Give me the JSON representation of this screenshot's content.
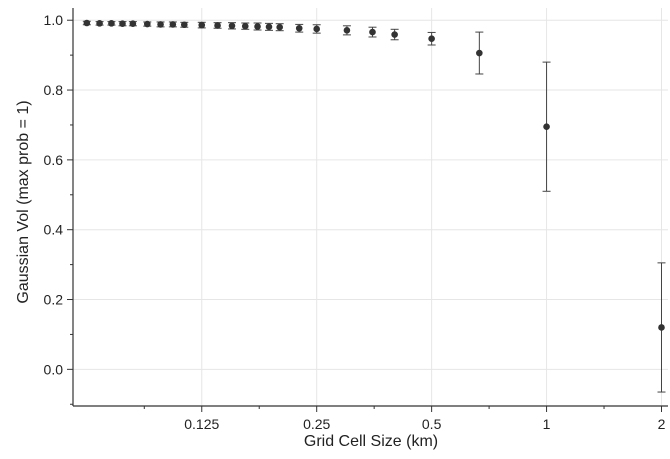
{
  "chart_data": {
    "type": "scatter",
    "xlabel": "Grid Cell Size (km)",
    "ylabel": "Gaussian Vol (max prob = 1)",
    "x_scale": "log2",
    "xlim": [
      0.0575,
      2.08
    ],
    "ylim": [
      -0.105,
      1.035
    ],
    "x_ticks": [
      {
        "value": 0.125,
        "label": "0.125"
      },
      {
        "value": 0.25,
        "label": "0.25"
      },
      {
        "value": 0.5,
        "label": "0.5"
      },
      {
        "value": 1,
        "label": "1"
      },
      {
        "value": 2,
        "label": "2"
      }
    ],
    "y_ticks": [
      {
        "value": 0.0,
        "label": "0.0"
      },
      {
        "value": 0.2,
        "label": "0.2"
      },
      {
        "value": 0.4,
        "label": "0.4"
      },
      {
        "value": 0.6,
        "label": "0.6"
      },
      {
        "value": 0.8,
        "label": "0.8"
      },
      {
        "value": 1.0,
        "label": "1.0"
      }
    ],
    "grid": true,
    "legend": "none",
    "marker_color": "#333333",
    "series": [
      {
        "points": [
          {
            "x": 0.0625,
            "y": 0.992,
            "err": 0.005
          },
          {
            "x": 0.0675,
            "y": 0.991,
            "err": 0.005
          },
          {
            "x": 0.0725,
            "y": 0.991,
            "err": 0.005
          },
          {
            "x": 0.0775,
            "y": 0.99,
            "err": 0.006
          },
          {
            "x": 0.0825,
            "y": 0.99,
            "err": 0.006
          },
          {
            "x": 0.09,
            "y": 0.989,
            "err": 0.006
          },
          {
            "x": 0.0975,
            "y": 0.988,
            "err": 0.007
          },
          {
            "x": 0.105,
            "y": 0.988,
            "err": 0.007
          },
          {
            "x": 0.1125,
            "y": 0.987,
            "err": 0.007
          },
          {
            "x": 0.125,
            "y": 0.986,
            "err": 0.008
          },
          {
            "x": 0.1375,
            "y": 0.985,
            "err": 0.008
          },
          {
            "x": 0.15,
            "y": 0.984,
            "err": 0.009
          },
          {
            "x": 0.1625,
            "y": 0.983,
            "err": 0.009
          },
          {
            "x": 0.175,
            "y": 0.982,
            "err": 0.01
          },
          {
            "x": 0.1875,
            "y": 0.981,
            "err": 0.01
          },
          {
            "x": 0.2,
            "y": 0.98,
            "err": 0.01
          },
          {
            "x": 0.225,
            "y": 0.977,
            "err": 0.011
          },
          {
            "x": 0.25,
            "y": 0.975,
            "err": 0.012
          },
          {
            "x": 0.3,
            "y": 0.971,
            "err": 0.013
          },
          {
            "x": 0.35,
            "y": 0.966,
            "err": 0.014
          },
          {
            "x": 0.4,
            "y": 0.959,
            "err": 0.015
          },
          {
            "x": 0.5,
            "y": 0.947,
            "err": 0.018
          },
          {
            "x": 0.6667,
            "y": 0.906,
            "err": 0.06
          },
          {
            "x": 1,
            "y": 0.695,
            "err": 0.185
          },
          {
            "x": 2,
            "y": 0.12,
            "err": 0.185
          }
        ]
      }
    ]
  }
}
